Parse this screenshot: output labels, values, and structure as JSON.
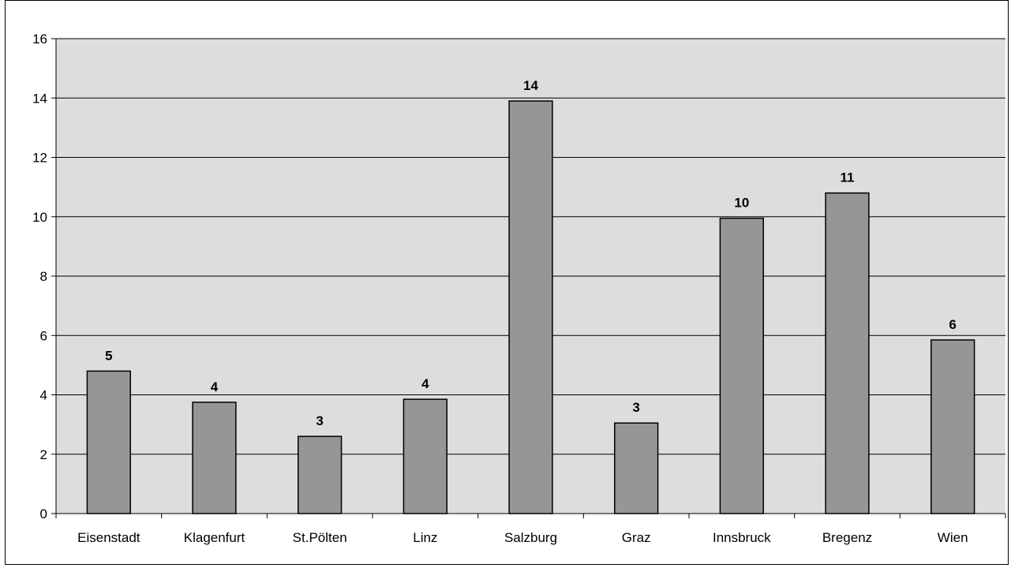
{
  "chart_data": {
    "type": "bar",
    "title": "",
    "xlabel": "",
    "ylabel": "",
    "categories": [
      "Eisenstadt",
      "Klagenfurt",
      "St.Pölten",
      "Linz",
      "Salzburg",
      "Graz",
      "Innsbruck",
      "Bregenz",
      "Wien"
    ],
    "values": [
      4.8,
      3.75,
      2.6,
      3.85,
      13.9,
      3.05,
      9.95,
      10.8,
      5.85
    ],
    "data_labels": [
      "5",
      "4",
      "3",
      "4",
      "14",
      "3",
      "10",
      "11",
      "6"
    ],
    "ylim": [
      0,
      16
    ],
    "yticks": [
      0,
      2,
      4,
      6,
      8,
      10,
      12,
      14,
      16
    ],
    "grid": true,
    "legend": "none",
    "colors": {
      "plot_background": "#dddddd",
      "bar_fill": "#969696",
      "bar_stroke": "#000000",
      "gridline": "#000000"
    }
  }
}
